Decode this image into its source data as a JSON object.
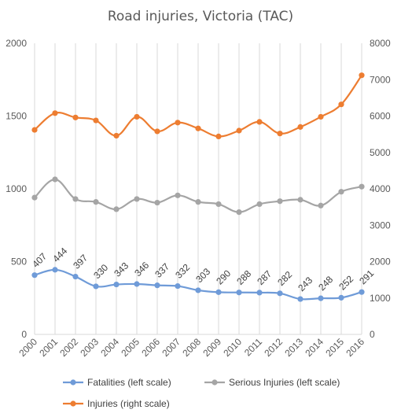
{
  "chart_data": {
    "type": "line",
    "title": "Road injuries, Victoria (TAC)",
    "categories": [
      "2000",
      "2001",
      "2002",
      "2003",
      "2004",
      "2005",
      "2006",
      "2007",
      "2008",
      "2009",
      "2010",
      "2011",
      "2012",
      "2013",
      "2014",
      "2015",
      "2016"
    ],
    "left_axis": {
      "min": 0,
      "max": 2000,
      "ticks": [
        "0",
        "500",
        "1000",
        "1500",
        "2000"
      ]
    },
    "right_axis": {
      "min": 0,
      "max": 8000,
      "ticks": [
        "0",
        "1000",
        "2000",
        "3000",
        "4000",
        "5000",
        "6000",
        "7000",
        "8000"
      ]
    },
    "grid": "vertical",
    "legend_position": "bottom",
    "series": [
      {
        "name": "Fatalities (left scale)",
        "axis": "left",
        "color": "#6f9bd8",
        "values": [
          407,
          444,
          397,
          330,
          343,
          346,
          337,
          332,
          303,
          290,
          288,
          287,
          282,
          243,
          248,
          252,
          291
        ],
        "labels": [
          "407",
          "444",
          "397",
          "330",
          "343",
          "346",
          "337",
          "332",
          "303",
          "290",
          "288",
          "287",
          "282",
          "243",
          "248",
          "252",
          "291"
        ]
      },
      {
        "name": "Serious Injuries (left scale)",
        "axis": "left",
        "color": "#a5a5a5",
        "values": [
          940,
          1065,
          930,
          910,
          860,
          930,
          905,
          955,
          910,
          895,
          840,
          895,
          915,
          925,
          885,
          980,
          1015
        ]
      },
      {
        "name": "Injuries (right scale)",
        "axis": "right",
        "color": "#ed7d31",
        "values": [
          5620,
          6080,
          5960,
          5880,
          5460,
          5980,
          5580,
          5820,
          5660,
          5440,
          5600,
          5840,
          5520,
          5700,
          5980,
          6320,
          7120
        ]
      }
    ]
  }
}
